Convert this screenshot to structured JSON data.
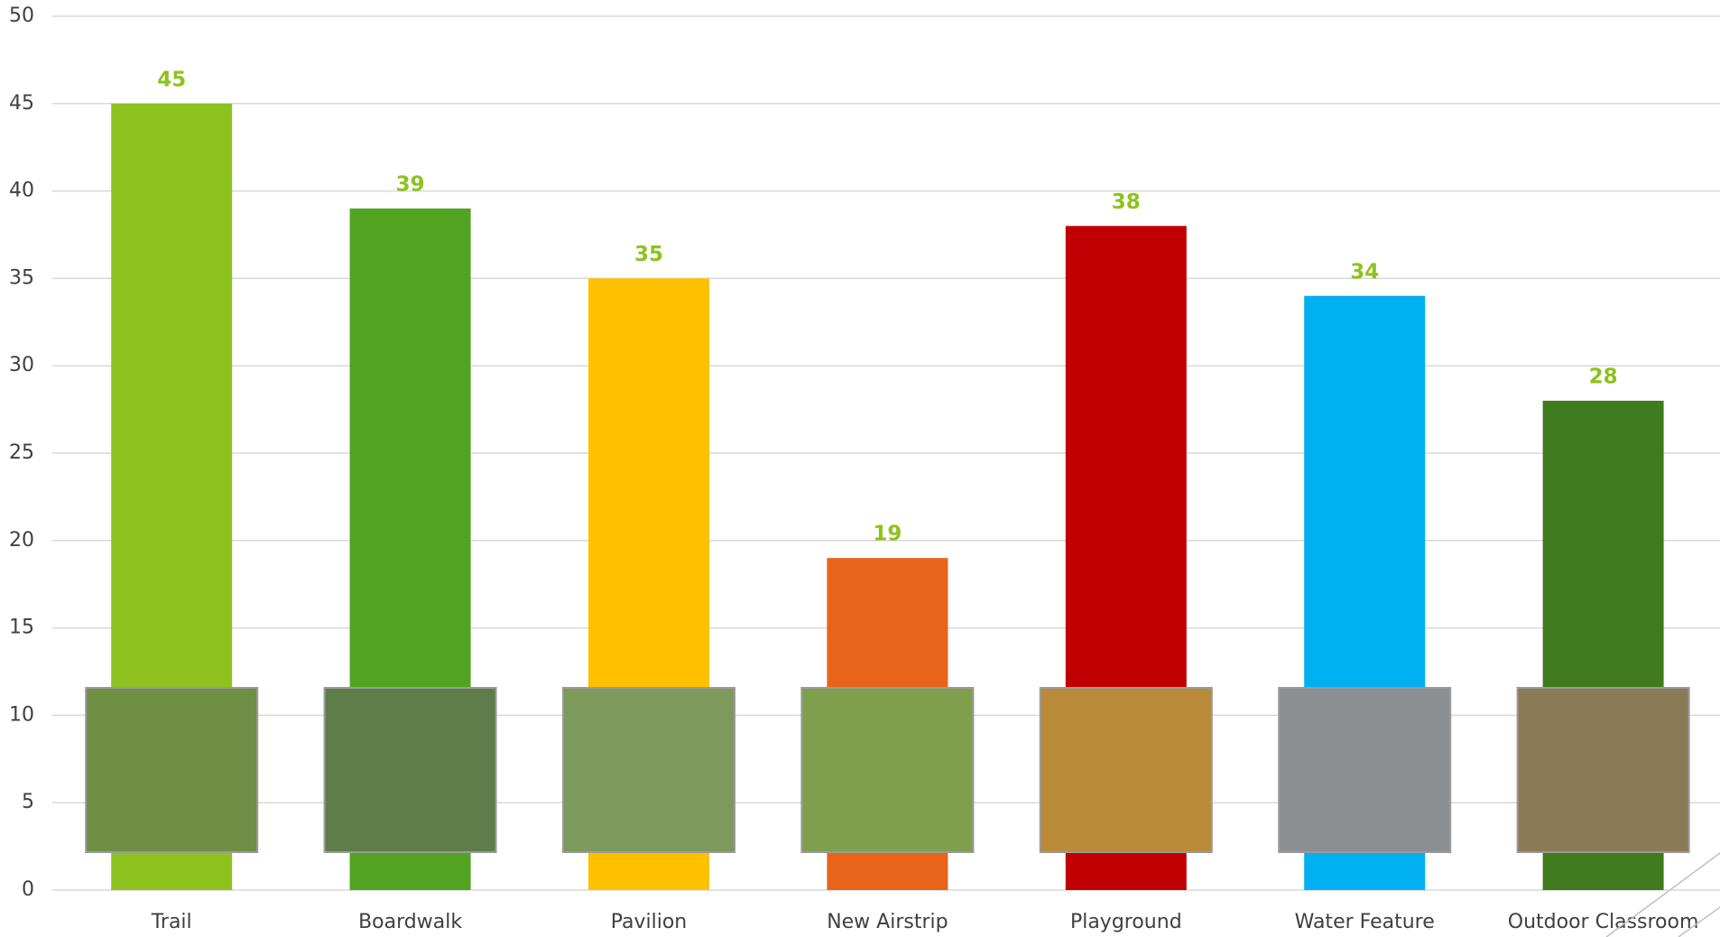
{
  "chart_data": {
    "type": "bar",
    "categories": [
      "Trail",
      "Boardwalk",
      "Pavilion",
      "New Airstrip",
      "Playground",
      "Water Feature",
      "Outdoor Classroom"
    ],
    "values": [
      45,
      39,
      35,
      19,
      38,
      34,
      28
    ],
    "colors": [
      "#8dc21f",
      "#52a322",
      "#ffc000",
      "#e8641b",
      "#c00000",
      "#00b0f0",
      "#3f7a1e"
    ],
    "label_color": "#8dc21f",
    "ylim": [
      0,
      50
    ],
    "yticks": [
      0,
      5,
      10,
      15,
      20,
      25,
      30,
      35,
      40,
      45,
      50
    ],
    "grid": true
  }
}
